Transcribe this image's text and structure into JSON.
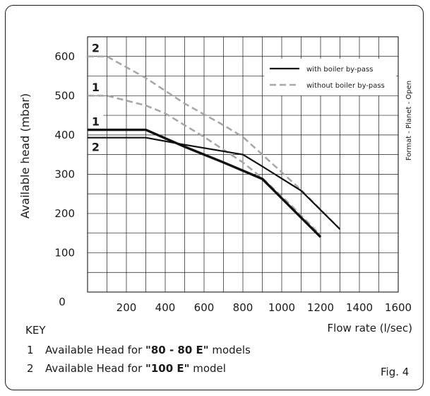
{
  "chart_data": {
    "type": "line",
    "xlabel": "Flow rate (l/sec)",
    "ylabel": "Available head (mbar)",
    "xlim": [
      0,
      1600
    ],
    "ylim": [
      0,
      650
    ],
    "x_ticks": [
      "0",
      "200",
      "400",
      "600",
      "800",
      "1000",
      "1200",
      "1400",
      "1600"
    ],
    "y_ticks": [
      "100",
      "200",
      "300",
      "400",
      "500",
      "600"
    ],
    "grid": true,
    "legend_position": "top-right",
    "legend": [
      {
        "label": "with boiler by-pass",
        "style": "solid",
        "color": "#111111"
      },
      {
        "label": "without boiler by-pass",
        "style": "dashed",
        "color": "#a8a8a8"
      }
    ],
    "series": [
      {
        "style": "dashed",
        "color": "#a8a8a8",
        "curve": "2",
        "points": [
          [
            0,
            600
          ],
          [
            100,
            600
          ],
          [
            300,
            545
          ],
          [
            500,
            480
          ],
          [
            700,
            425
          ],
          [
            800,
            395
          ],
          [
            900,
            350
          ],
          [
            1100,
            260
          ],
          [
            1300,
            160
          ]
        ]
      },
      {
        "style": "dashed",
        "color": "#a8a8a8",
        "curve": "1",
        "points": [
          [
            0,
            500
          ],
          [
            100,
            500
          ],
          [
            300,
            475
          ],
          [
            400,
            455
          ],
          [
            600,
            395
          ],
          [
            800,
            330
          ],
          [
            900,
            290
          ],
          [
            1050,
            220
          ],
          [
            1200,
            145
          ]
        ]
      },
      {
        "style": "solid",
        "color": "#111111",
        "curve": "1",
        "points": [
          [
            0,
            413
          ],
          [
            300,
            413
          ],
          [
            500,
            370
          ],
          [
            700,
            330
          ],
          [
            900,
            288
          ],
          [
            1200,
            140
          ]
        ]
      },
      {
        "style": "solid",
        "color": "#111111",
        "curve": "2",
        "points": [
          [
            0,
            393
          ],
          [
            300,
            393
          ],
          [
            500,
            375
          ],
          [
            800,
            350
          ],
          [
            900,
            320
          ],
          [
            1100,
            258
          ],
          [
            1300,
            160
          ]
        ]
      }
    ],
    "curve_labels": [
      {
        "text": "2",
        "x": 100,
        "y": 622
      },
      {
        "text": "1",
        "x": 100,
        "y": 522
      },
      {
        "text": "1",
        "x": 100,
        "y": 435
      },
      {
        "text": "2",
        "x": 100,
        "y": 370
      }
    ],
    "side_label": "Format - Planet - Open"
  },
  "key": {
    "title": "KEY",
    "items": [
      {
        "num": "1",
        "text": "Available Head for ",
        "bold": "\"80 - 80 E\"",
        "tail": " models"
      },
      {
        "num": "2",
        "text": "Available Head for ",
        "bold": "\"100 E\"",
        "tail": " model"
      }
    ]
  },
  "figure_label": "Fig. 4"
}
